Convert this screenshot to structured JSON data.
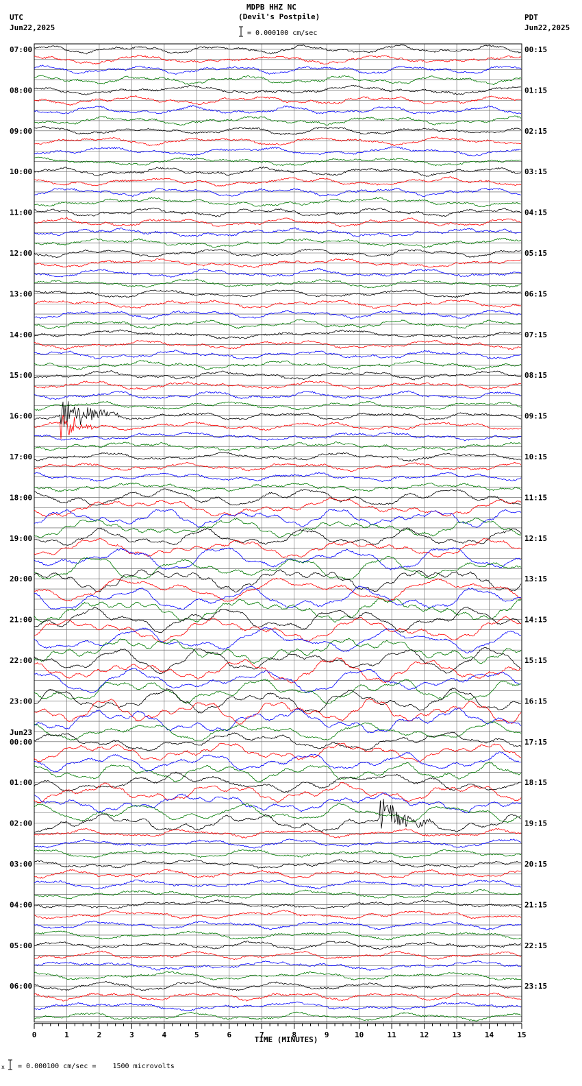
{
  "header": {
    "station": "MDPB HHZ NC",
    "location": "(Devil's Postpile)",
    "scale_text": "= 0.000100 cm/sec",
    "left_tz": "UTC",
    "left_date": "Jun22,2025",
    "right_tz": "PDT",
    "right_date": "Jun22,2025"
  },
  "footer": {
    "scale_note": "= 0.000100 cm/sec =    1500 microvolts"
  },
  "chart_data": {
    "type": "line",
    "title": "MDPB HHZ NC (Devil's Postpile)",
    "xlabel": "TIME (MINUTES)",
    "xlim": [
      0,
      15
    ],
    "x_ticks": [
      "0",
      "1",
      "2",
      "3",
      "4",
      "5",
      "6",
      "7",
      "8",
      "9",
      "10",
      "11",
      "12",
      "13",
      "14",
      "15"
    ],
    "trace_colors": [
      "#000000",
      "#ff0000",
      "#0000ff",
      "#007a00"
    ],
    "rows_per_hour": 4,
    "hours": 24,
    "left_labels": [
      {
        "hour": 0,
        "text": "07:00"
      },
      {
        "hour": 1,
        "text": "08:00"
      },
      {
        "hour": 2,
        "text": "09:00"
      },
      {
        "hour": 3,
        "text": "10:00"
      },
      {
        "hour": 4,
        "text": "11:00"
      },
      {
        "hour": 5,
        "text": "12:00"
      },
      {
        "hour": 6,
        "text": "13:00"
      },
      {
        "hour": 7,
        "text": "14:00"
      },
      {
        "hour": 8,
        "text": "15:00"
      },
      {
        "hour": 9,
        "text": "16:00"
      },
      {
        "hour": 10,
        "text": "17:00"
      },
      {
        "hour": 11,
        "text": "18:00"
      },
      {
        "hour": 12,
        "text": "19:00"
      },
      {
        "hour": 13,
        "text": "20:00"
      },
      {
        "hour": 14,
        "text": "21:00"
      },
      {
        "hour": 15,
        "text": "22:00"
      },
      {
        "hour": 16,
        "text": "23:00"
      },
      {
        "hour": 17,
        "text": "00:00"
      },
      {
        "hour": 18,
        "text": "01:00"
      },
      {
        "hour": 19,
        "text": "02:00"
      },
      {
        "hour": 20,
        "text": "03:00"
      },
      {
        "hour": 21,
        "text": "04:00"
      },
      {
        "hour": 22,
        "text": "05:00"
      },
      {
        "hour": 23,
        "text": "06:00"
      }
    ],
    "date_change": {
      "hour": 17,
      "text": "Jun23"
    },
    "right_labels": [
      {
        "hour": 0,
        "text": "00:15"
      },
      {
        "hour": 1,
        "text": "01:15"
      },
      {
        "hour": 2,
        "text": "02:15"
      },
      {
        "hour": 3,
        "text": "03:15"
      },
      {
        "hour": 4,
        "text": "04:15"
      },
      {
        "hour": 5,
        "text": "05:15"
      },
      {
        "hour": 6,
        "text": "06:15"
      },
      {
        "hour": 7,
        "text": "07:15"
      },
      {
        "hour": 8,
        "text": "08:15"
      },
      {
        "hour": 9,
        "text": "09:15"
      },
      {
        "hour": 10,
        "text": "10:15"
      },
      {
        "hour": 11,
        "text": "11:15"
      },
      {
        "hour": 12,
        "text": "12:15"
      },
      {
        "hour": 13,
        "text": "13:15"
      },
      {
        "hour": 14,
        "text": "14:15"
      },
      {
        "hour": 15,
        "text": "15:15"
      },
      {
        "hour": 16,
        "text": "16:15"
      },
      {
        "hour": 17,
        "text": "17:15"
      },
      {
        "hour": 18,
        "text": "18:15"
      },
      {
        "hour": 19,
        "text": "19:15"
      },
      {
        "hour": 20,
        "text": "20:15"
      },
      {
        "hour": 21,
        "text": "21:15"
      },
      {
        "hour": 22,
        "text": "22:15"
      },
      {
        "hour": 23,
        "text": "23:15"
      }
    ],
    "events": [
      {
        "row": 36,
        "minute_start": 0.8,
        "minute_end": 2.6,
        "amplitude": "large"
      },
      {
        "row": 37,
        "minute_start": 0.8,
        "minute_end": 1.8,
        "amplitude": "large"
      },
      {
        "row": 76,
        "minute_start": 10.6,
        "minute_end": 12.2,
        "amplitude": "large"
      }
    ]
  }
}
